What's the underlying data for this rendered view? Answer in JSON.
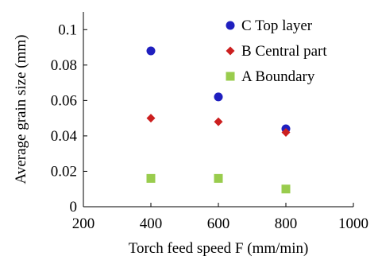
{
  "chart_data": {
    "type": "scatter",
    "title": "",
    "xlabel": "Torch feed speed F (mm/min)",
    "ylabel": "Average grain size (mm)",
    "xlim": [
      200,
      1000
    ],
    "ylim": [
      0,
      0.11
    ],
    "xticks": [
      200,
      400,
      600,
      800,
      1000
    ],
    "yticks": [
      0,
      0.02,
      0.04,
      0.06,
      0.08,
      0.1
    ],
    "xtick_labels": [
      "200",
      "400",
      "600",
      "800",
      "1000"
    ],
    "ytick_labels": [
      "0",
      "0.02",
      "0.04",
      "0.06",
      "0.08",
      "0.1"
    ],
    "grid": false,
    "legend": "top-right",
    "series": [
      {
        "name": "C Top layer",
        "marker": "circle",
        "color": "#1f1fbf",
        "x": [
          400,
          600,
          800
        ],
        "y": [
          0.088,
          0.062,
          0.044
        ]
      },
      {
        "name": "B Central part",
        "marker": "diamond",
        "color": "#cc1f1f",
        "x": [
          400,
          600,
          800
        ],
        "y": [
          0.05,
          0.048,
          0.042
        ]
      },
      {
        "name": "A Boundary",
        "marker": "square",
        "color": "#99cc4d",
        "x": [
          400,
          600,
          800
        ],
        "y": [
          0.016,
          0.016,
          0.01
        ]
      }
    ]
  }
}
